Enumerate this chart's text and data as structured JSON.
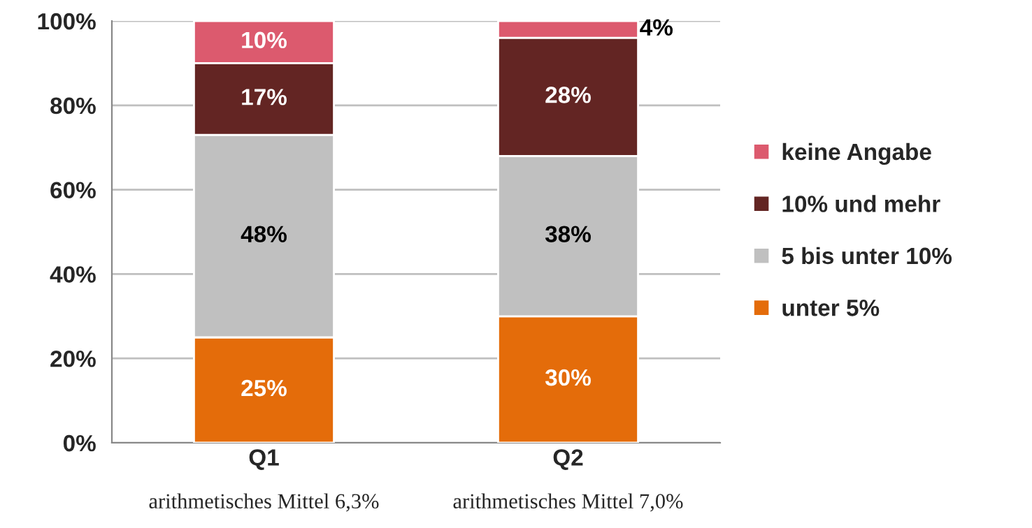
{
  "chart_data": {
    "type": "bar",
    "stacked": true,
    "categories": [
      "Q1",
      "Q2"
    ],
    "series": [
      {
        "name": "unter 5%",
        "color": "#e46c0a",
        "values": [
          25,
          30
        ],
        "value_labels": [
          "25%",
          "30%"
        ]
      },
      {
        "name": "5 bis unter 10%",
        "color": "#c0c0c0",
        "values": [
          48,
          38
        ],
        "value_labels": [
          "48%",
          "38%"
        ]
      },
      {
        "name": "10% und mehr",
        "color": "#632523",
        "values": [
          17,
          28
        ],
        "value_labels": [
          "17%",
          "28%"
        ]
      },
      {
        "name": "keine Angabe",
        "color": "#dc5a6e",
        "values": [
          10,
          4
        ],
        "value_labels": [
          "10%",
          "4%"
        ]
      }
    ],
    "ylim": [
      0,
      100
    ],
    "yticks": [
      {
        "value": 0,
        "label": "0%"
      },
      {
        "value": 20,
        "label": "20%"
      },
      {
        "value": 40,
        "label": "40%"
      },
      {
        "value": 60,
        "label": "60%"
      },
      {
        "value": 80,
        "label": "80%"
      },
      {
        "value": 100,
        "label": "100%"
      }
    ],
    "grid": "y",
    "legend": "right",
    "annotations": [
      "arithmetisches Mittel 6,3%",
      "arithmetisches Mittel 7,0%"
    ]
  }
}
